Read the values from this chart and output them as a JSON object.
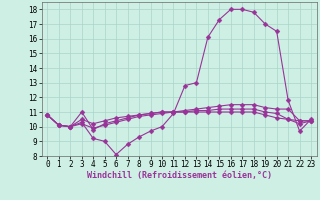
{
  "xlabel": "Windchill (Refroidissement éolien,°C)",
  "bg_color": "#cef0e4",
  "grid_color": "#aad4c8",
  "line_color": "#993399",
  "xlim": [
    -0.5,
    23.5
  ],
  "ylim": [
    8,
    18.5
  ],
  "xticks": [
    0,
    1,
    2,
    3,
    4,
    5,
    6,
    7,
    8,
    9,
    10,
    11,
    12,
    13,
    14,
    15,
    16,
    17,
    18,
    19,
    20,
    21,
    22,
    23
  ],
  "yticks": [
    8,
    9,
    10,
    11,
    12,
    13,
    14,
    15,
    16,
    17,
    18
  ],
  "line1_x": [
    0,
    1,
    2,
    3,
    4,
    5,
    6,
    7,
    8,
    9,
    10,
    11,
    12,
    13,
    14,
    15,
    16,
    17,
    18,
    19,
    20,
    21,
    22,
    23
  ],
  "line1_y": [
    10.8,
    10.1,
    10.0,
    10.3,
    9.2,
    9.0,
    8.1,
    8.8,
    9.3,
    9.7,
    10.0,
    10.9,
    12.8,
    13.0,
    16.1,
    17.3,
    18.0,
    18.0,
    17.8,
    17.0,
    16.5,
    11.8,
    9.7,
    10.5
  ],
  "line2_x": [
    0,
    1,
    2,
    3,
    4,
    5,
    6,
    7,
    8,
    9,
    10,
    11,
    12,
    13,
    14,
    15,
    16,
    17,
    18,
    19,
    20,
    21,
    22,
    23
  ],
  "line2_y": [
    10.8,
    10.1,
    10.0,
    11.0,
    9.8,
    10.2,
    10.4,
    10.6,
    10.8,
    10.9,
    11.0,
    11.0,
    11.1,
    11.2,
    11.3,
    11.4,
    11.5,
    11.5,
    11.5,
    11.3,
    11.2,
    11.2,
    10.4,
    10.4
  ],
  "line3_x": [
    0,
    1,
    2,
    3,
    4,
    5,
    6,
    7,
    8,
    9,
    10,
    11,
    12,
    13,
    14,
    15,
    16,
    17,
    18,
    19,
    20,
    21,
    22,
    23
  ],
  "line3_y": [
    10.8,
    10.1,
    10.0,
    10.5,
    10.2,
    10.4,
    10.6,
    10.7,
    10.8,
    10.9,
    11.0,
    11.0,
    11.0,
    11.0,
    11.0,
    11.0,
    11.0,
    11.0,
    11.0,
    10.8,
    10.6,
    10.5,
    10.4,
    10.4
  ],
  "line4_x": [
    0,
    1,
    2,
    3,
    4,
    5,
    6,
    7,
    8,
    9,
    10,
    11,
    12,
    13,
    14,
    15,
    16,
    17,
    18,
    19,
    20,
    21,
    22,
    23
  ],
  "line4_y": [
    10.8,
    10.1,
    10.0,
    10.2,
    9.9,
    10.1,
    10.3,
    10.5,
    10.7,
    10.8,
    10.9,
    11.0,
    11.0,
    11.1,
    11.1,
    11.2,
    11.2,
    11.2,
    11.2,
    11.0,
    10.9,
    10.5,
    10.2,
    10.4
  ],
  "tick_fontsize": 5.5,
  "xlabel_fontsize": 6.0,
  "marker_size": 2.5,
  "line_width": 0.8
}
